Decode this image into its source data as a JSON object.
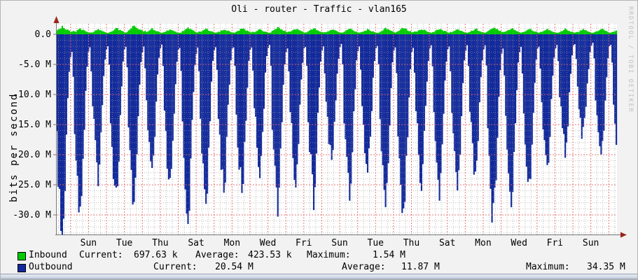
{
  "watermark": "RRDTOOL / TOBI OETIKER",
  "legend": {
    "current_label": "Current:",
    "average_label": "Average:",
    "maximum_label": "Maximum:"
  },
  "chart_data": {
    "type": "area",
    "title": "Oli - router - Traffic - vlan165",
    "ylabel": "bits per second",
    "y_tick_labels": [
      "0.0",
      "-5.0 M",
      "-10.0 M",
      "-15.0 M",
      "-20.0 M",
      "-25.0 M",
      "-30.0 M"
    ],
    "y_axis": {
      "unit": "bits/s",
      "major_step_M": 5,
      "minor_step_M": 1,
      "visible_min_M": -33.3,
      "visible_max_M": 1.7
    },
    "x_tick_labels": [
      "Sun",
      "Tue",
      "Thu",
      "Sat",
      "Mon",
      "Wed",
      "Fri",
      "Sun",
      "Tue",
      "Thu",
      "Sat",
      "Mon",
      "Wed",
      "Fri",
      "Sun"
    ],
    "x_axis": {
      "span_days": 31,
      "label_every_days": 2,
      "major_grid_every_days": 1,
      "minor_grid_every_hours": 8
    },
    "grid": {
      "on": true,
      "minor_color": "#9a9a9a",
      "major_color": "#e06a6a",
      "plot_background": "#ffffff",
      "axis_color": "#777777",
      "arrow_color": "#9c241c"
    },
    "legend_position": "bottom",
    "series": [
      {
        "name": "Inbound",
        "color": "#00cc00",
        "direction": "positive",
        "current": "697.63 k",
        "average": "423.53 k",
        "maximum": "1.54 M"
      },
      {
        "name": "Outbound",
        "color": "#132a9c",
        "direction": "negative",
        "current": "20.54 M",
        "average": "11.87 M",
        "maximum": "34.35 M"
      }
    ],
    "samples_per_day": 13,
    "outbound_day_peaks_Mbps": [
      34.35,
      29,
      23,
      27,
      28,
      23,
      26,
      30,
      27,
      25,
      26,
      22,
      28,
      24,
      27,
      21,
      26,
      23,
      28,
      30,
      24,
      26,
      25,
      23,
      30.5,
      27,
      25,
      22,
      19,
      17,
      21,
      22
    ],
    "outbound_daily_profile": [
      0.52,
      0.68,
      0.82,
      0.94,
      1.0,
      0.9,
      0.74,
      0.52,
      0.32,
      0.18,
      0.1,
      0.08,
      0.22
    ],
    "inbound_day_peaks_Mbps": [
      1.3,
      0.9,
      0.8,
      1.0,
      1.54,
      0.9,
      0.8,
      1.1,
      0.9,
      0.85,
      1.0,
      0.8,
      1.2,
      0.9,
      1.0,
      0.85,
      0.9,
      0.8,
      1.0,
      1.1,
      0.9,
      0.95,
      0.85,
      0.9,
      1.2,
      1.0,
      0.9,
      0.8,
      0.85,
      0.8,
      0.9,
      0.9
    ],
    "inbound_daily_profile": [
      0.45,
      0.55,
      0.7,
      0.85,
      1.0,
      0.9,
      0.75,
      0.65,
      0.55,
      0.45,
      0.35,
      0.3,
      0.38
    ]
  }
}
